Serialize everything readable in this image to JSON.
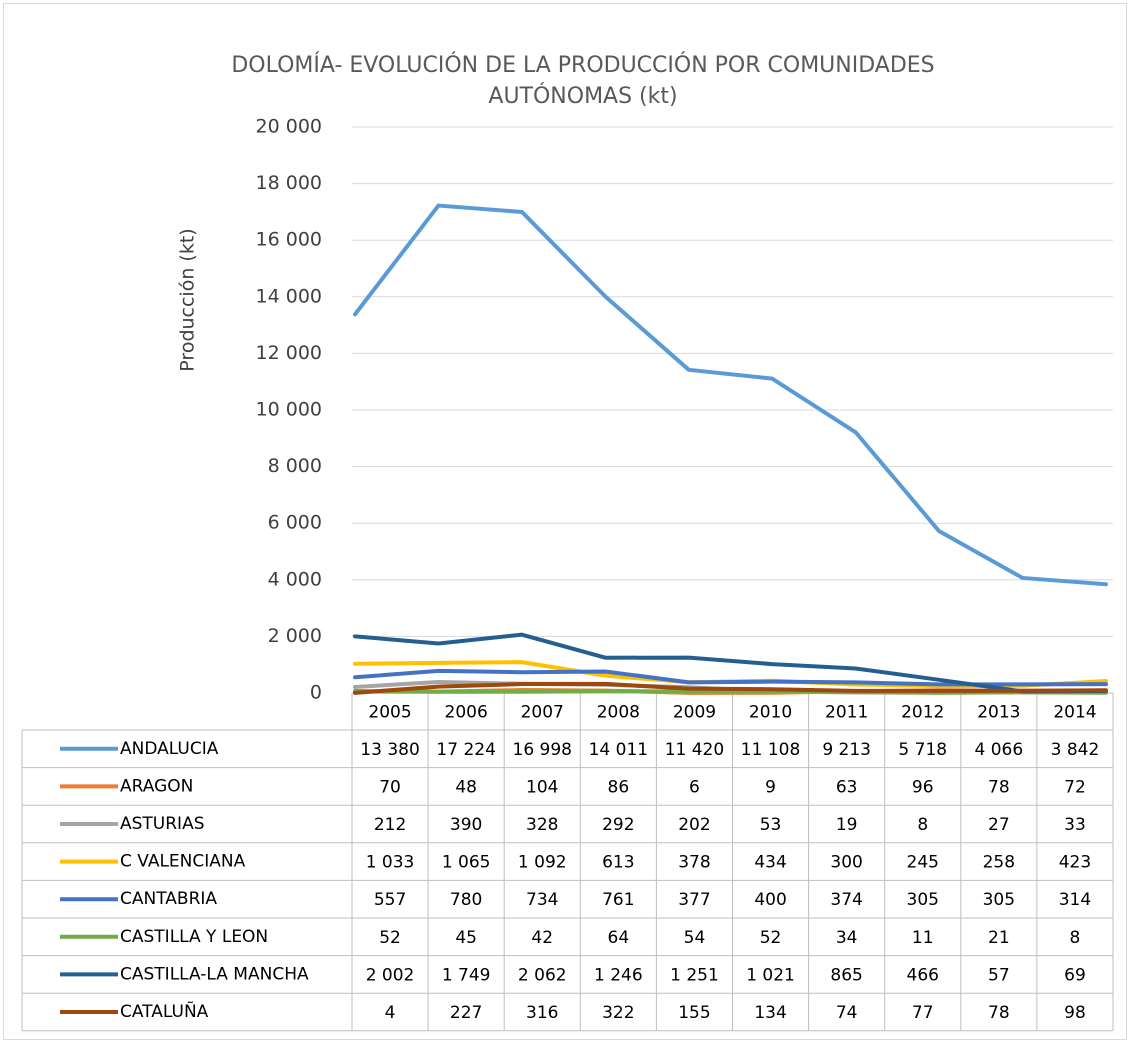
{
  "chart_data": {
    "type": "line",
    "title": "DOLOMÍA- EVOLUCIÓN DE LA PRODUCCIÓN POR COMUNIDADES AUTÓNOMAS (kt)",
    "ylabel": "Producción (kt)",
    "categories": [
      "2005",
      "2006",
      "2007",
      "2008",
      "2009",
      "2010",
      "2011",
      "2012",
      "2013",
      "2014"
    ],
    "ylim": [
      0,
      20000
    ],
    "yticks": [
      0,
      {
        "value": 2000,
        "label": "2 000"
      },
      {
        "value": 4000,
        "label": "4 000"
      },
      {
        "value": 6000,
        "label": "6 000"
      },
      {
        "value": 8000,
        "label": "8 000"
      },
      {
        "value": 10000,
        "label": "10 000"
      },
      {
        "value": 12000,
        "label": "12 000"
      },
      {
        "value": 14000,
        "label": "14 000"
      },
      {
        "value": 16000,
        "label": "16 000"
      },
      {
        "value": 18000,
        "label": "18 000"
      },
      {
        "value": 20000,
        "label": "20 000"
      }
    ],
    "grid": true,
    "series": [
      {
        "name": "ANDALUCIA",
        "color": "#5b9bd5",
        "values": [
          13380,
          17224,
          16998,
          14011,
          11420,
          11108,
          9213,
          5718,
          4066,
          3842
        ],
        "value_labels": [
          "13 380",
          "17 224",
          "16 998",
          "14 011",
          "11 420",
          "11 108",
          "9 213",
          "5 718",
          "4 066",
          "3 842"
        ]
      },
      {
        "name": "ARAGON",
        "color": "#ed7d31",
        "values": [
          70,
          48,
          104,
          86,
          6,
          9,
          63,
          96,
          78,
          72
        ]
      },
      {
        "name": "ASTURIAS",
        "color": "#a5a5a5",
        "values": [
          212,
          390,
          328,
          292,
          202,
          53,
          19,
          8,
          27,
          33
        ]
      },
      {
        "name": "C VALENCIANA",
        "color": "#ffc000",
        "values": [
          1033,
          1065,
          1092,
          613,
          378,
          434,
          300,
          245,
          258,
          423
        ],
        "value_labels": [
          "1 033",
          "1 065",
          "1 092",
          "613",
          "378",
          "434",
          "300",
          "245",
          "258",
          "423"
        ]
      },
      {
        "name": "CANTABRIA",
        "color": "#4472c4",
        "values": [
          557,
          780,
          734,
          761,
          377,
          400,
          374,
          305,
          305,
          314
        ]
      },
      {
        "name": "CASTILLA Y LEON",
        "color": "#70ad47",
        "values": [
          52,
          45,
          42,
          64,
          54,
          52,
          34,
          11,
          21,
          8
        ]
      },
      {
        "name": "CASTILLA-LA MANCHA",
        "color": "#255e91",
        "values": [
          2002,
          1749,
          2062,
          1246,
          1251,
          1021,
          865,
          466,
          57,
          69
        ],
        "value_labels": [
          "2 002",
          "1 749",
          "2 062",
          "1 246",
          "1 251",
          "1 021",
          "865",
          "466",
          "57",
          "69"
        ]
      },
      {
        "name": "CATALUÑA",
        "color": "#9e480e",
        "values": [
          4,
          227,
          316,
          322,
          155,
          134,
          74,
          77,
          78,
          98
        ]
      }
    ]
  }
}
